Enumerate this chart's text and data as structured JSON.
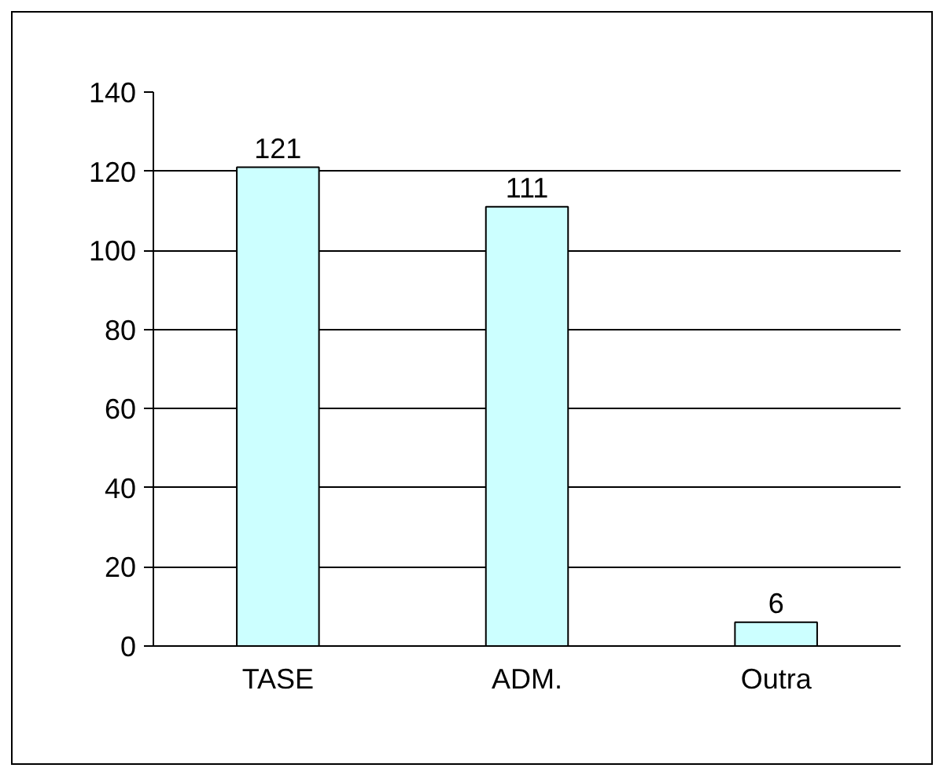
{
  "chart_data": {
    "type": "bar",
    "categories": [
      "TASE",
      "ADM.",
      "Outra"
    ],
    "values": [
      121,
      111,
      6
    ],
    "color": "#ccffff",
    "ylim": [
      0,
      140
    ],
    "yticks": [
      0,
      20,
      40,
      60,
      80,
      100,
      120,
      140
    ],
    "grid": "y",
    "data_labels": true
  }
}
